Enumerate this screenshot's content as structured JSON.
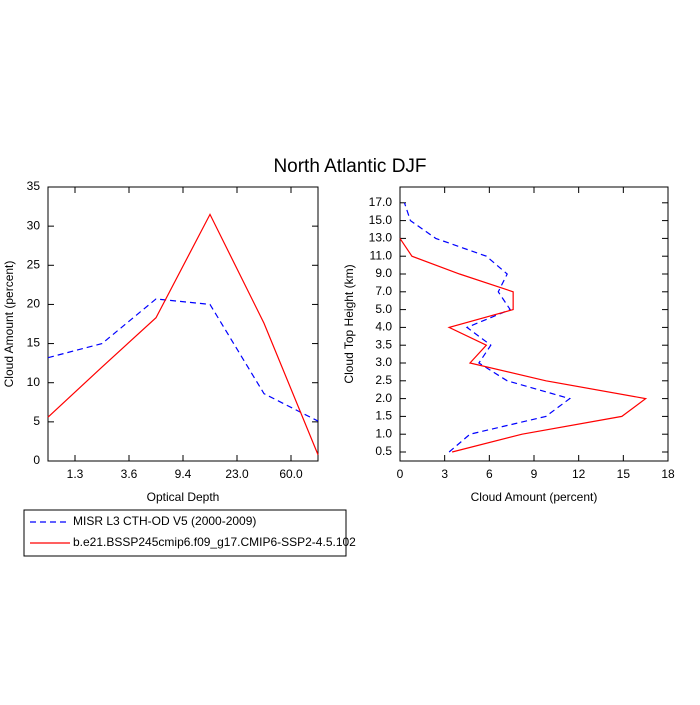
{
  "title": "North Atlantic DJF",
  "chart_data": [
    {
      "type": "line",
      "x_label": "Optical Depth",
      "y_label": "Cloud Amount (percent)",
      "x": [
        0,
        1,
        2,
        3,
        4,
        5
      ],
      "xlim": [
        0,
        5
      ],
      "xticks": [
        {
          "value": 0.5,
          "label": "1.3"
        },
        {
          "value": 1.5,
          "label": "3.6"
        },
        {
          "value": 2.5,
          "label": "9.4"
        },
        {
          "value": 3.5,
          "label": "23.0"
        },
        {
          "value": 4.5,
          "label": "60.0"
        }
      ],
      "ylim": [
        0,
        35
      ],
      "yticks": [
        0,
        5,
        10,
        15,
        20,
        25,
        30,
        35
      ],
      "series": [
        {
          "name": "MISR L3 CTH-OD V5 (2000-2009)",
          "color": "#0000ff",
          "dash": true,
          "values": [
            13.2,
            15.0,
            20.7,
            20.0,
            8.6,
            5.1
          ]
        },
        {
          "name": "b.e21.BSSP245cmip6.f09_g17.CMIP6-SSP2-4.5.102",
          "color": "#ff0000",
          "dash": false,
          "values": [
            5.6,
            12.0,
            18.3,
            31.5,
            17.6,
            0.8
          ]
        }
      ]
    },
    {
      "type": "profile",
      "x_label": "Cloud Amount (percent)",
      "y_label": "Cloud Top Height (km)",
      "categories": [
        "0.5",
        "1.0",
        "1.5",
        "2.0",
        "2.5",
        "3.0",
        "3.5",
        "4.0",
        "5.0",
        "7.0",
        "9.0",
        "11.0",
        "13.0",
        "15.0",
        "17.0"
      ],
      "xlim": [
        0,
        18
      ],
      "xticks": [
        0,
        3,
        6,
        9,
        12,
        15,
        18
      ],
      "series": [
        {
          "color": "#0000ff",
          "dash": true,
          "values": [
            3.3,
            4.7,
            9.8,
            11.4,
            7.2,
            5.3,
            6.1,
            4.5,
            7.4,
            6.6,
            7.2,
            5.8,
            2.4,
            0.7,
            0.3
          ]
        },
        {
          "color": "#ff0000",
          "dash": false,
          "values": [
            3.5,
            8.2,
            14.9,
            16.5,
            9.8,
            4.7,
            5.8,
            3.3,
            7.6,
            7.6,
            4.0,
            0.8,
            0.0,
            null,
            null
          ]
        }
      ]
    }
  ]
}
